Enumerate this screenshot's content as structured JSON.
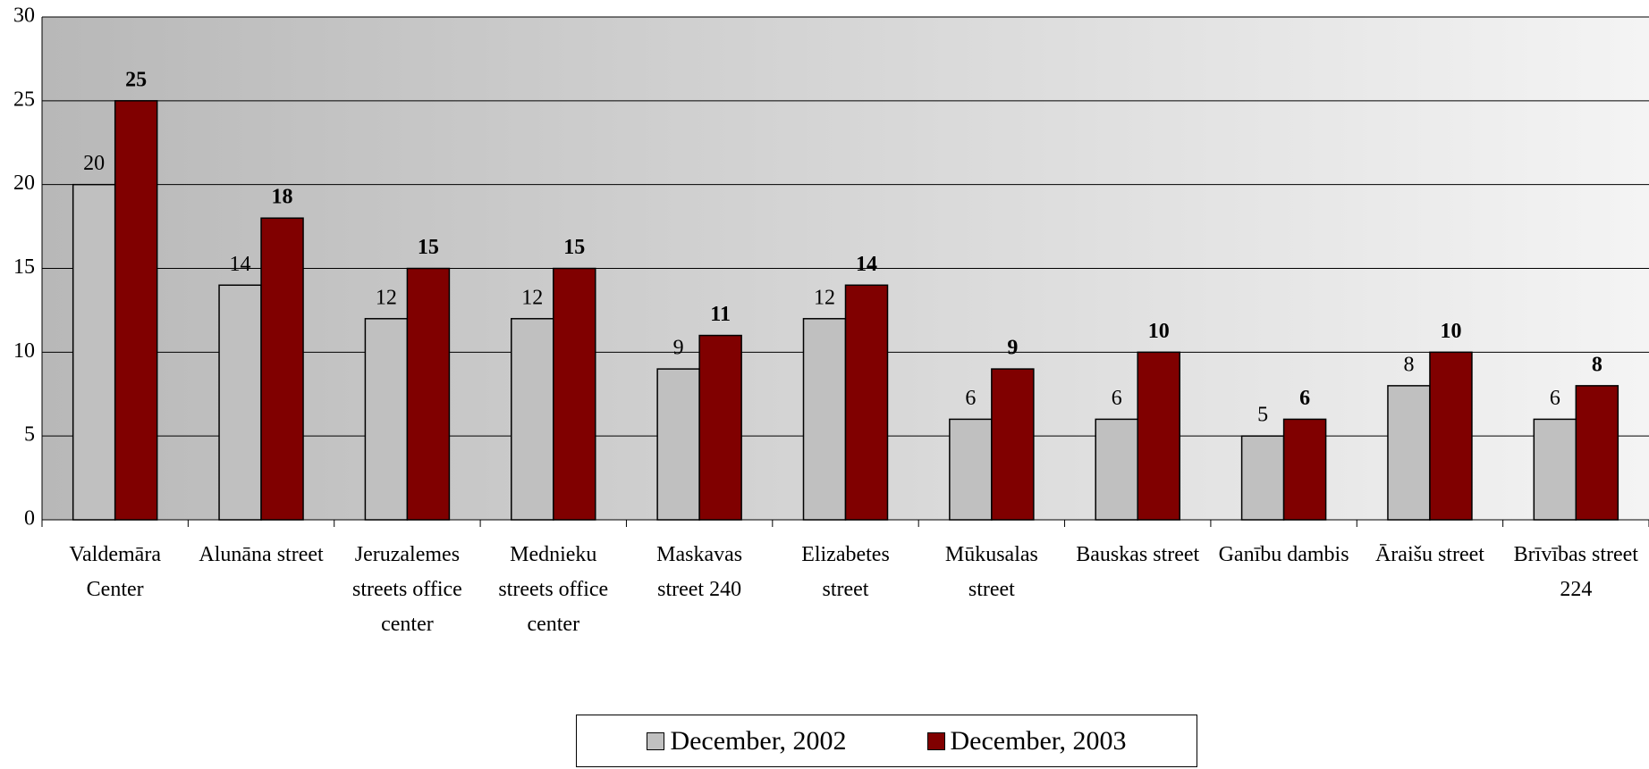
{
  "chart_data": {
    "type": "bar",
    "categories": [
      "Valdemāra Center",
      "Alunāna street",
      "Jeruzalemes streets office center",
      "Mednieku streets office center",
      "Maskavas street 240",
      "Elizabetes street",
      "Mūkusalas street",
      "Bauskas street",
      "Ganību dambis",
      "Āraišu street",
      "Brīvības street 224"
    ],
    "series": [
      {
        "name": "December, 2002",
        "color": "#c0c0c0",
        "values": [
          20,
          14,
          12,
          12,
          9,
          12,
          6,
          6,
          5,
          8,
          6
        ]
      },
      {
        "name": "December, 2003",
        "color": "#800000",
        "values": [
          25,
          18,
          15,
          15,
          11,
          14,
          9,
          10,
          6,
          10,
          8
        ]
      }
    ],
    "ylim": [
      0,
      30
    ],
    "yticks": [
      0,
      5,
      10,
      15,
      20,
      25,
      30
    ],
    "grid": true,
    "legend": "bottom"
  }
}
